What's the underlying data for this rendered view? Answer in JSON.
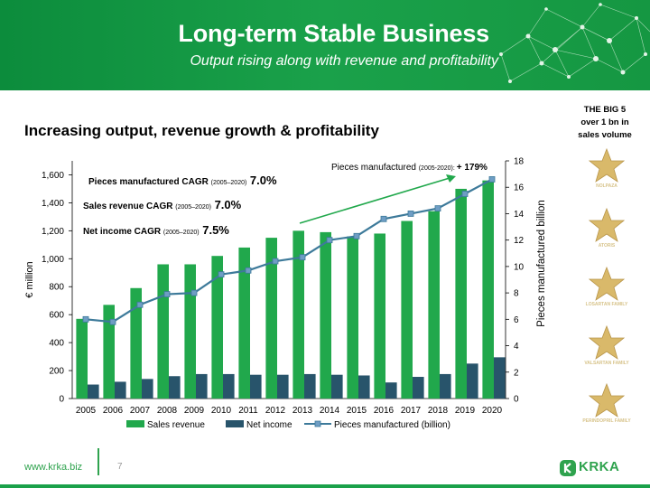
{
  "header": {
    "title": "Long-term Stable Business",
    "subtitle": "Output rising along with revenue and profitability"
  },
  "section_heading": "Increasing output, revenue growth & profitability",
  "side_panel": {
    "title_lines": [
      "THE BIG 5",
      "over 1 bn in",
      "sales volume"
    ],
    "items": [
      {
        "label": "NOLPAZA"
      },
      {
        "label": "ATORIS"
      },
      {
        "label": "LOSARTAN FAMILY"
      },
      {
        "label": "VALSARTAN FAMILY"
      },
      {
        "label": "PERINDOPRIL FAMILY"
      }
    ]
  },
  "footer": {
    "url": "www.krka.biz",
    "page": "7",
    "logo_text": "KRKA"
  },
  "colors": {
    "brand_green": "#1aa14a",
    "bar_revenue": "#21a84c",
    "bar_income": "#28546b",
    "line_pieces": "#3d7a9a",
    "marker_pieces": "#6e9dc4",
    "arrow": "#21a84c"
  },
  "chart_data": {
    "type": "bar",
    "categories": [
      "2005",
      "2006",
      "2007",
      "2008",
      "2009",
      "2010",
      "2011",
      "2012",
      "2013",
      "2014",
      "2015",
      "2016",
      "2017",
      "2018",
      "2019",
      "2020"
    ],
    "series": [
      {
        "name": "Sales revenue",
        "type": "bar",
        "axis": "left",
        "values": [
          570,
          670,
          790,
          960,
          960,
          1020,
          1080,
          1150,
          1200,
          1190,
          1160,
          1180,
          1270,
          1340,
          1500,
          1560
        ]
      },
      {
        "name": "Net income",
        "type": "bar",
        "axis": "left",
        "values": [
          100,
          120,
          140,
          160,
          175,
          175,
          170,
          170,
          175,
          170,
          165,
          115,
          155,
          175,
          250,
          295
        ]
      },
      {
        "name": "Pieces manufactured (billion)",
        "type": "line",
        "axis": "right",
        "values": [
          6.0,
          5.8,
          7.1,
          7.9,
          8.0,
          9.4,
          9.7,
          10.4,
          10.7,
          12.0,
          12.3,
          13.6,
          14.0,
          14.4,
          15.5,
          16.6
        ]
      }
    ],
    "ylabel": "€ million",
    "ylim": [
      0,
      1700
    ],
    "yticks": [
      "0",
      "200",
      "400",
      "600",
      "800",
      "1,000",
      "1,200",
      "1,400",
      "1,600"
    ],
    "y2label": "Pieces manufactured billion",
    "y2lim": [
      0,
      18
    ],
    "y2ticks": [
      "0",
      "2",
      "4",
      "6",
      "8",
      "10",
      "12",
      "14",
      "16",
      "18"
    ],
    "legend": [
      {
        "label": "Sales revenue"
      },
      {
        "label": "Net income"
      },
      {
        "label": "Pieces manufactured (billion)"
      }
    ],
    "legend_position": "bottom",
    "grid": false,
    "annotations": {
      "cagr": [
        {
          "label": "Pieces manufactured CAGR",
          "period": "(2005–2020)",
          "value": "7.0%"
        },
        {
          "label": "Sales revenue CAGR",
          "period": "(2005–2020)",
          "value": "7.0%"
        },
        {
          "label": "Net income CAGR",
          "period": "(2005–2020)",
          "value": "7.5%"
        }
      ],
      "pieces_growth": {
        "label": "Pieces manufactured",
        "period": "(2005-2020):",
        "value": "+ 179%"
      }
    }
  }
}
